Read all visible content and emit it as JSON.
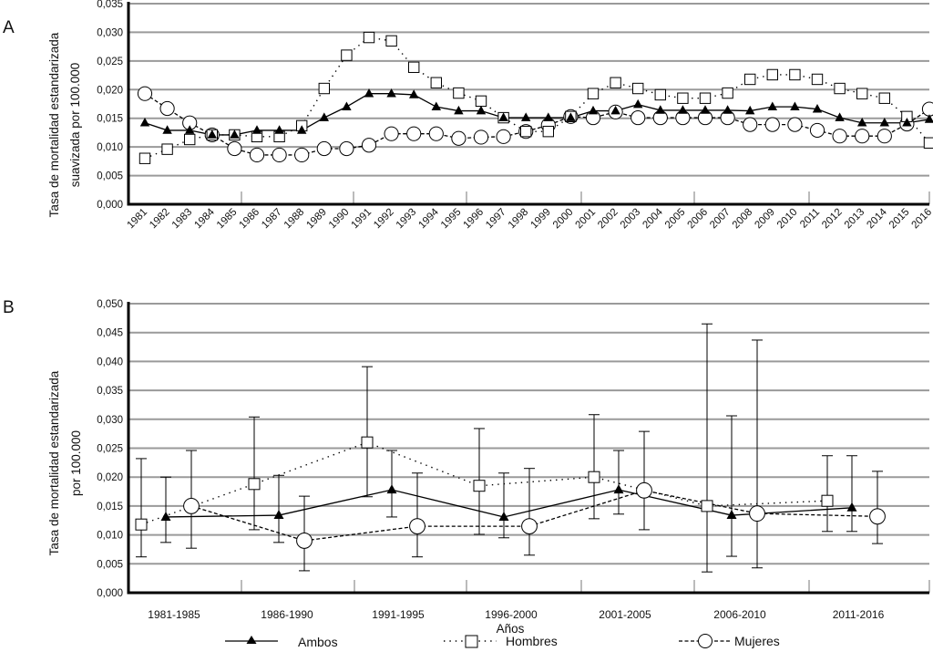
{
  "chart_data": [
    {
      "panel": "A",
      "type": "line",
      "ylabel": [
        "Tasa de mortalidad estandarizada",
        "suavizada por 100.000"
      ],
      "xlabel": "",
      "ylim": [
        0,
        0.035
      ],
      "yticks": [
        "0,000",
        "0,005",
        "0,010",
        "0,015",
        "0,020",
        "0,025",
        "0,030",
        "0,035"
      ],
      "ytick_values": [
        0,
        0.005,
        0.01,
        0.015,
        0.02,
        0.025,
        0.03,
        0.035
      ],
      "grid": true,
      "x": [
        "1981",
        "1982",
        "1983",
        "1984",
        "1985",
        "1986",
        "1987",
        "1988",
        "1989",
        "1990",
        "1991",
        "1992",
        "1993",
        "1994",
        "1995",
        "1996",
        "1997",
        "1998",
        "1999",
        "2000",
        "2001",
        "2002",
        "2003",
        "2004",
        "2005",
        "2006",
        "2007",
        "2008",
        "2009",
        "2010",
        "2011",
        "2012",
        "2013",
        "2014",
        "2015",
        "2016"
      ],
      "series": [
        {
          "name": "Ambos",
          "marker": "triangle",
          "line": "solid",
          "values": [
            0.0142,
            0.0129,
            0.0129,
            0.0121,
            0.0121,
            0.0129,
            0.0129,
            0.0129,
            0.0151,
            0.017,
            0.0193,
            0.0193,
            0.0191,
            0.017,
            0.0163,
            0.0163,
            0.0151,
            0.0151,
            0.0151,
            0.0151,
            0.0163,
            0.0163,
            0.0174,
            0.0164,
            0.0164,
            0.0164,
            0.0164,
            0.0163,
            0.017,
            0.017,
            0.0166,
            0.0151,
            0.0142,
            0.0142,
            0.0142,
            0.0148
          ]
        },
        {
          "name": "Hombres",
          "marker": "square",
          "line": "dotted",
          "values": [
            0.008,
            0.0096,
            0.0113,
            0.0121,
            0.0121,
            0.0118,
            0.0118,
            0.0137,
            0.0202,
            0.026,
            0.0291,
            0.0285,
            0.0239,
            0.0212,
            0.0194,
            0.018,
            0.0151,
            0.0127,
            0.0127,
            0.0153,
            0.0193,
            0.0212,
            0.0202,
            0.0191,
            0.0185,
            0.0185,
            0.0194,
            0.0218,
            0.0226,
            0.0226,
            0.0218,
            0.0202,
            0.0193,
            0.0185,
            0.0153,
            0.0107
          ]
        },
        {
          "name": "Mujeres",
          "marker": "circle",
          "line": "dashed",
          "values": [
            0.0193,
            0.0167,
            0.0142,
            0.0121,
            0.0097,
            0.0086,
            0.0086,
            0.0086,
            0.0097,
            0.0097,
            0.0103,
            0.0123,
            0.0123,
            0.0123,
            0.0115,
            0.0117,
            0.0118,
            0.0127,
            0.0138,
            0.0153,
            0.0151,
            0.0161,
            0.0151,
            0.0151,
            0.0151,
            0.0151,
            0.0151,
            0.0139,
            0.0139,
            0.0139,
            0.0129,
            0.0119,
            0.0119,
            0.0119,
            0.014,
            0.0166
          ]
        }
      ]
    },
    {
      "panel": "B",
      "type": "line",
      "ylabel": [
        "Tasa de mortalidad estandarizada",
        "por 100.000"
      ],
      "xlabel": "Años",
      "ylim": [
        0,
        0.05
      ],
      "yticks": [
        "0,000",
        "0,005",
        "0,010",
        "0,015",
        "0,020",
        "0,025",
        "0,030",
        "0,035",
        "0,040",
        "0,045",
        "0,050"
      ],
      "ytick_values": [
        0,
        0.005,
        0.01,
        0.015,
        0.02,
        0.025,
        0.03,
        0.035,
        0.04,
        0.045,
        0.05
      ],
      "grid": true,
      "categories": [
        "1981-1985",
        "1986-1990",
        "1991-1995",
        "1996-2000",
        "2001-2005",
        "2006-2010",
        "2011-2016"
      ],
      "series": [
        {
          "name": "Ambos",
          "marker": "triangle",
          "line": "solid",
          "values": [
            0.0131,
            0.0134,
            0.0178,
            0.0131,
            0.0178,
            0.0134,
            0.0147
          ],
          "ci_low": [
            0.0087,
            0.0087,
            0.0131,
            0.0095,
            0.0136,
            0.0063,
            0.0106
          ],
          "ci_high": [
            0.02,
            0.0203,
            0.0246,
            0.0207,
            0.0246,
            0.0306,
            0.0237
          ]
        },
        {
          "name": "Hombres",
          "marker": "square",
          "line": "dotted",
          "values": [
            0.0118,
            0.0188,
            0.026,
            0.0185,
            0.02,
            0.015,
            0.0159
          ],
          "ci_low": [
            0.0062,
            0.0109,
            0.0166,
            0.0101,
            0.0128,
            0.0036,
            0.0106
          ],
          "ci_high": [
            0.0232,
            0.0304,
            0.0391,
            0.0284,
            0.0308,
            0.0465,
            0.0237
          ]
        },
        {
          "name": "Mujeres",
          "marker": "circle",
          "line": "dashed",
          "values": [
            0.015,
            0.009,
            0.0115,
            0.0115,
            0.0177,
            0.0137,
            0.0132
          ],
          "ci_low": [
            0.0077,
            0.0038,
            0.0062,
            0.0065,
            0.0109,
            0.0043,
            0.0085
          ],
          "ci_high": [
            0.0246,
            0.0167,
            0.0207,
            0.0215,
            0.0279,
            0.0437,
            0.021
          ]
        }
      ],
      "legend": {
        "position": "bottom",
        "entries": [
          "Ambos",
          "Hombres",
          "Mujeres"
        ]
      }
    }
  ],
  "labels": {
    "panel_a": "A",
    "panel_b": "B"
  },
  "colors": {
    "grid": "#999999",
    "axis": "#000000",
    "series": "#000000",
    "marker_fill_open": "#ffffff"
  }
}
